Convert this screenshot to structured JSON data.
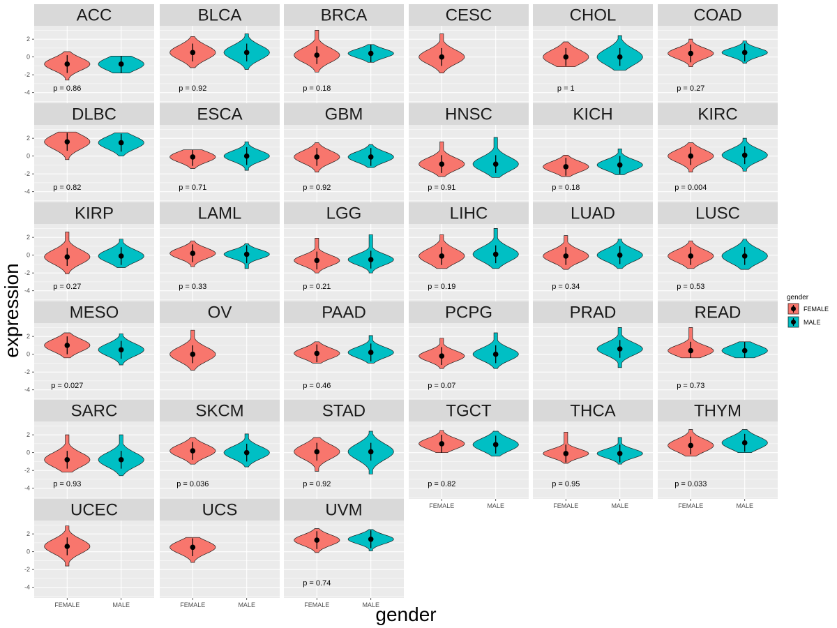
{
  "chart_data": {
    "type": "violin",
    "xlabel": "gender",
    "ylabel": "expression",
    "categories": [
      "FEMALE",
      "MALE"
    ],
    "ylim": [
      -5.2,
      3.5
    ],
    "y_ticks": [
      2,
      0,
      -2,
      -4
    ],
    "y_tick_labels": [
      "2",
      "0",
      "-2",
      "-4"
    ],
    "legend": {
      "title": "gender",
      "position": "right",
      "entries": [
        {
          "label": "FEMALE",
          "color": "#F8766D"
        },
        {
          "label": "MALE",
          "color": "#00BFC4"
        }
      ]
    },
    "panels": [
      {
        "name": "ACC",
        "p_label": "p = 0.86",
        "female": {
          "min": -2.6,
          "max": 0.6,
          "median": -0.8,
          "sd": 0.7
        },
        "male": {
          "min": -1.8,
          "max": 0.1,
          "median": -0.8,
          "sd": 0.7
        }
      },
      {
        "name": "BLCA",
        "p_label": "p = 0.92",
        "female": {
          "min": -1.2,
          "max": 2.3,
          "median": 0.5,
          "sd": 0.8
        },
        "male": {
          "min": -1.4,
          "max": 2.6,
          "median": 0.5,
          "sd": 0.8
        }
      },
      {
        "name": "BRCA",
        "p_label": "p = 0.18",
        "female": {
          "min": -1.7,
          "max": 3.0,
          "median": 0.2,
          "sd": 0.8
        },
        "male": {
          "min": -0.6,
          "max": 1.4,
          "median": 0.4,
          "sd": 0.5
        }
      },
      {
        "name": "CESC",
        "p_label": "",
        "female": {
          "min": -1.8,
          "max": 2.6,
          "median": 0.0,
          "sd": 0.8
        },
        "male": null
      },
      {
        "name": "CHOL",
        "p_label": "p = 1",
        "female": {
          "min": -1.1,
          "max": 1.7,
          "median": 0.0,
          "sd": 0.8
        },
        "male": {
          "min": -1.5,
          "max": 2.4,
          "median": 0.0,
          "sd": 0.9
        }
      },
      {
        "name": "COAD",
        "p_label": "p = 0.27",
        "female": {
          "min": -1.1,
          "max": 2.0,
          "median": 0.4,
          "sd": 0.6
        },
        "male": {
          "min": -0.7,
          "max": 1.8,
          "median": 0.5,
          "sd": 0.5
        }
      },
      {
        "name": "DLBC",
        "p_label": "p = 0.82",
        "female": {
          "min": -0.4,
          "max": 2.7,
          "median": 1.6,
          "sd": 0.8
        },
        "male": {
          "min": 0.0,
          "max": 2.6,
          "median": 1.5,
          "sd": 0.7
        }
      },
      {
        "name": "ESCA",
        "p_label": "p = 0.71",
        "female": {
          "min": -1.4,
          "max": 0.7,
          "median": -0.1,
          "sd": 0.6
        },
        "male": {
          "min": -1.6,
          "max": 1.6,
          "median": 0.0,
          "sd": 0.6
        }
      },
      {
        "name": "GBM",
        "p_label": "p = 0.92",
        "female": {
          "min": -1.8,
          "max": 1.5,
          "median": -0.1,
          "sd": 0.7
        },
        "male": {
          "min": -1.3,
          "max": 1.3,
          "median": -0.1,
          "sd": 0.6
        }
      },
      {
        "name": "HNSC",
        "p_label": "p = 0.91",
        "female": {
          "min": -2.3,
          "max": 1.6,
          "median": -0.9,
          "sd": 0.7
        },
        "male": {
          "min": -2.4,
          "max": 2.1,
          "median": -0.9,
          "sd": 0.8
        }
      },
      {
        "name": "KICH",
        "p_label": "p = 0.18",
        "female": {
          "min": -2.3,
          "max": 0.1,
          "median": -1.2,
          "sd": 0.6
        },
        "male": {
          "min": -2.1,
          "max": 0.8,
          "median": -1.0,
          "sd": 0.6
        }
      },
      {
        "name": "KIRC",
        "p_label": "p = 0.004",
        "female": {
          "min": -1.8,
          "max": 1.5,
          "median": 0.0,
          "sd": 0.7
        },
        "male": {
          "min": -1.7,
          "max": 2.0,
          "median": 0.1,
          "sd": 0.7
        }
      },
      {
        "name": "KIRP",
        "p_label": "p = 0.27",
        "female": {
          "min": -2.1,
          "max": 2.6,
          "median": -0.2,
          "sd": 0.8
        },
        "male": {
          "min": -1.4,
          "max": 1.8,
          "median": -0.1,
          "sd": 0.7
        }
      },
      {
        "name": "LAML",
        "p_label": "p = 0.33",
        "female": {
          "min": -1.3,
          "max": 1.6,
          "median": 0.2,
          "sd": 0.6
        },
        "male": {
          "min": -1.5,
          "max": 1.3,
          "median": 0.1,
          "sd": 0.5
        }
      },
      {
        "name": "LGG",
        "p_label": "p = 0.21",
        "female": {
          "min": -2.0,
          "max": 1.9,
          "median": -0.6,
          "sd": 0.6
        },
        "male": {
          "min": -2.0,
          "max": 2.3,
          "median": -0.5,
          "sd": 0.6
        }
      },
      {
        "name": "LIHC",
        "p_label": "p = 0.19",
        "female": {
          "min": -1.5,
          "max": 2.3,
          "median": -0.1,
          "sd": 0.8
        },
        "male": {
          "min": -1.5,
          "max": 3.0,
          "median": 0.1,
          "sd": 0.8
        }
      },
      {
        "name": "LUAD",
        "p_label": "p = 0.34",
        "female": {
          "min": -1.6,
          "max": 2.2,
          "median": -0.1,
          "sd": 0.7
        },
        "male": {
          "min": -1.5,
          "max": 1.8,
          "median": 0.0,
          "sd": 0.7
        }
      },
      {
        "name": "LUSC",
        "p_label": "p = 0.53",
        "female": {
          "min": -1.5,
          "max": 1.6,
          "median": -0.1,
          "sd": 0.7
        },
        "male": {
          "min": -1.6,
          "max": 1.8,
          "median": -0.1,
          "sd": 0.8
        }
      },
      {
        "name": "MESO",
        "p_label": "p = 0.027",
        "female": {
          "min": -0.4,
          "max": 2.4,
          "median": 1.0,
          "sd": 0.7
        },
        "male": {
          "min": -1.2,
          "max": 2.3,
          "median": 0.5,
          "sd": 0.7
        }
      },
      {
        "name": "OV",
        "p_label": "",
        "female": {
          "min": -1.8,
          "max": 2.7,
          "median": 0.0,
          "sd": 0.8
        },
        "male": null
      },
      {
        "name": "PAAD",
        "p_label": "p = 0.46",
        "female": {
          "min": -1.0,
          "max": 1.4,
          "median": 0.1,
          "sd": 0.6
        },
        "male": {
          "min": -1.0,
          "max": 2.1,
          "median": 0.2,
          "sd": 0.6
        }
      },
      {
        "name": "PCPG",
        "p_label": "p = 0.07",
        "female": {
          "min": -1.6,
          "max": 1.8,
          "median": -0.2,
          "sd": 0.6
        },
        "male": {
          "min": -1.6,
          "max": 2.4,
          "median": 0.0,
          "sd": 0.7
        }
      },
      {
        "name": "PRAD",
        "p_label": "",
        "female": null,
        "male": {
          "min": -1.5,
          "max": 3.0,
          "median": 0.6,
          "sd": 0.7
        }
      },
      {
        "name": "READ",
        "p_label": "p = 0.73",
        "female": {
          "min": -0.4,
          "max": 3.0,
          "median": 0.4,
          "sd": 0.6
        },
        "male": {
          "min": -0.4,
          "max": 1.4,
          "median": 0.4,
          "sd": 0.6
        }
      },
      {
        "name": "SARC",
        "p_label": "p = 0.93",
        "female": {
          "min": -2.2,
          "max": 2.0,
          "median": -0.8,
          "sd": 0.8
        },
        "male": {
          "min": -2.6,
          "max": 2.0,
          "median": -0.8,
          "sd": 0.8
        }
      },
      {
        "name": "SKCM",
        "p_label": "p = 0.036",
        "female": {
          "min": -1.3,
          "max": 1.7,
          "median": 0.2,
          "sd": 0.7
        },
        "male": {
          "min": -1.6,
          "max": 2.1,
          "median": 0.0,
          "sd": 0.7
        }
      },
      {
        "name": "STAD",
        "p_label": "p = 0.92",
        "female": {
          "min": -2.1,
          "max": 1.7,
          "median": 0.1,
          "sd": 0.8
        },
        "male": {
          "min": -2.4,
          "max": 2.4,
          "median": 0.1,
          "sd": 0.9
        }
      },
      {
        "name": "TGCT",
        "p_label": "p = 0.82",
        "female": {
          "min": 0.0,
          "max": 2.5,
          "median": 1.0,
          "sd": 0.6
        },
        "male": {
          "min": -0.4,
          "max": 2.4,
          "median": 0.9,
          "sd": 0.7
        }
      },
      {
        "name": "THCA",
        "p_label": "p = 0.95",
        "female": {
          "min": -1.2,
          "max": 2.3,
          "median": -0.1,
          "sd": 0.5
        },
        "male": {
          "min": -1.3,
          "max": 1.7,
          "median": -0.1,
          "sd": 0.5
        }
      },
      {
        "name": "THYM",
        "p_label": "p = 0.033",
        "female": {
          "min": -0.4,
          "max": 2.6,
          "median": 0.8,
          "sd": 0.7
        },
        "male": {
          "min": 0.0,
          "max": 2.6,
          "median": 1.1,
          "sd": 0.7
        }
      },
      {
        "name": "UCEC",
        "p_label": "",
        "female": {
          "min": -1.6,
          "max": 2.9,
          "median": 0.6,
          "sd": 0.8
        },
        "male": null
      },
      {
        "name": "UCS",
        "p_label": "",
        "female": {
          "min": -1.2,
          "max": 1.6,
          "median": 0.5,
          "sd": 0.7
        },
        "male": null
      },
      {
        "name": "UVM",
        "p_label": "p = 0.74",
        "female": {
          "min": -0.1,
          "max": 2.6,
          "median": 1.3,
          "sd": 0.6
        },
        "male": {
          "min": 0.1,
          "max": 2.5,
          "median": 1.4,
          "sd": 0.5
        }
      }
    ]
  }
}
